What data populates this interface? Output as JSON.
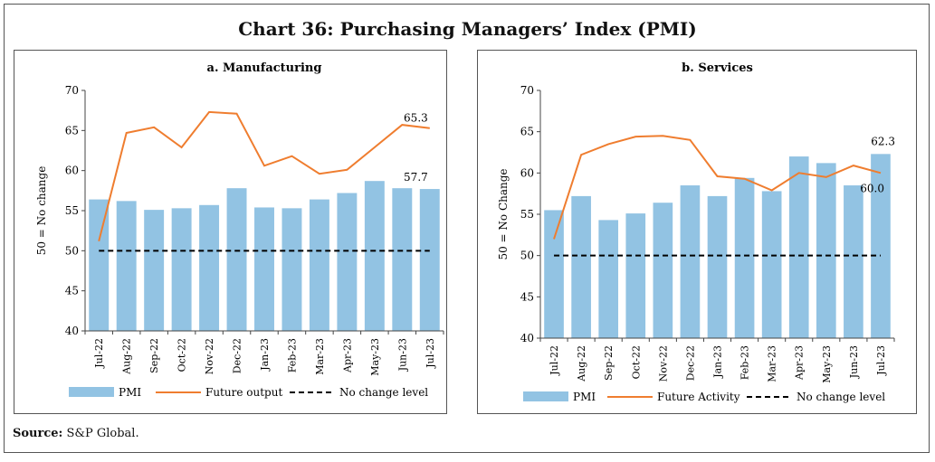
{
  "page": {
    "title": "Chart 36: Purchasing Managers’ Index (PMI)",
    "source_label": "Source:",
    "source_text": " S&P Global."
  },
  "colors": {
    "bar": "#92c3e3",
    "line": "#ef7d2f",
    "baseline": "#000000"
  },
  "chart_data": [
    {
      "type": "bar",
      "title": "a. Manufacturing",
      "ylabel": "50 = No change",
      "ylim": [
        40,
        70
      ],
      "yticks": [
        40,
        45,
        50,
        55,
        60,
        65,
        70
      ],
      "categories": [
        "Jul-22",
        "Aug-22",
        "Sep-22",
        "Oct-22",
        "Nov-22",
        "Dec-22",
        "Jan-23",
        "Feb-23",
        "Mar-23",
        "Apr-23",
        "May-23",
        "Jun-23",
        "Jul-23"
      ],
      "series": [
        {
          "name": "PMI",
          "type": "bar",
          "values": [
            56.4,
            56.2,
            55.1,
            55.3,
            55.7,
            57.8,
            55.4,
            55.3,
            56.4,
            57.2,
            58.7,
            57.8,
            57.7
          ]
        },
        {
          "name": "Future output",
          "type": "line",
          "values": [
            51.2,
            64.7,
            65.4,
            62.9,
            67.3,
            67.1,
            60.6,
            61.8,
            59.6,
            60.1,
            62.9,
            65.7,
            65.3
          ]
        },
        {
          "name": "No change level",
          "type": "dashed",
          "values": [
            50,
            50,
            50,
            50,
            50,
            50,
            50,
            50,
            50,
            50,
            50,
            50,
            50
          ]
        }
      ],
      "annotations": [
        {
          "text": "65.3",
          "series": 1,
          "index": 12
        },
        {
          "text": "57.7",
          "series": 0,
          "index": 12
        }
      ]
    },
    {
      "type": "bar",
      "title": "b. Services",
      "ylabel": "50 = No Change",
      "ylim": [
        40,
        70
      ],
      "yticks": [
        40,
        45,
        50,
        55,
        60,
        65,
        70
      ],
      "categories": [
        "Jul-22",
        "Aug-22",
        "Sep-22",
        "Oct-22",
        "Nov-22",
        "Dec-22",
        "Jan-23",
        "Feb-23",
        "Mar-23",
        "Apr-23",
        "May-23",
        "Jun-23",
        "Jul-23"
      ],
      "series": [
        {
          "name": "PMI",
          "type": "bar",
          "values": [
            55.5,
            57.2,
            54.3,
            55.1,
            56.4,
            58.5,
            57.2,
            59.4,
            57.8,
            62.0,
            61.2,
            58.5,
            62.3
          ]
        },
        {
          "name": "Future Activity",
          "type": "line",
          "values": [
            52.0,
            62.2,
            63.5,
            64.4,
            64.5,
            64.0,
            59.6,
            59.3,
            57.9,
            60.0,
            59.5,
            60.9,
            60.0
          ]
        },
        {
          "name": "No change level",
          "type": "dashed",
          "values": [
            50,
            50,
            50,
            50,
            50,
            50,
            50,
            50,
            50,
            50,
            50,
            50,
            50
          ]
        }
      ],
      "annotations": [
        {
          "text": "62.3",
          "series": 0,
          "index": 12
        },
        {
          "text": "60.0",
          "series": 1,
          "index": 12
        }
      ]
    }
  ]
}
